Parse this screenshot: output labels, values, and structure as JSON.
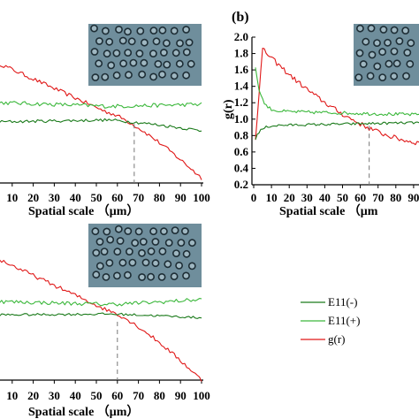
{
  "colors": {
    "e11_minus": "#1a7a1a",
    "e11_plus": "#3cb83c",
    "gr": "#e01818",
    "marker": "#777777",
    "inset_bg": "#6f8e9c",
    "inset_cell": "#1d2d35"
  },
  "panel_label_b": "(b)",
  "legend": [
    {
      "label": "E11(-)",
      "color": "#1a7a1a"
    },
    {
      "label": "E11(+)",
      "color": "#3cb83c"
    },
    {
      "label": "g(r)",
      "color": "#e01818"
    }
  ],
  "chart_data": [
    {
      "id": "a",
      "type": "line",
      "xlabel": "Spatial scale （μm）",
      "xlim": [
        0,
        100
      ],
      "x_ticks": [
        "10",
        "20",
        "30",
        "40",
        "50",
        "60",
        "70",
        "80",
        "90",
        "100"
      ],
      "ylim": [
        0.5,
        2.0
      ],
      "crossing_x": 68,
      "series": [
        {
          "name": "g(r)",
          "start": 1.75,
          "mid": 1.22,
          "end": 0.55,
          "noise": 0.02
        },
        {
          "name": "E11(+)",
          "start": 1.32,
          "mid": 1.28,
          "end": 1.3,
          "noise": 0.02
        },
        {
          "name": "E11(-)",
          "start": 1.12,
          "mid": 1.14,
          "end": 1.03,
          "noise": 0.015
        }
      ]
    },
    {
      "id": "b",
      "type": "line",
      "xlabel": "Spatial scale （μm",
      "ylabel": "g(r)",
      "xlim": [
        0,
        100
      ],
      "x_ticks": [
        "0",
        "10",
        "20",
        "30",
        "40",
        "50",
        "60",
        "70",
        "80",
        "90"
      ],
      "ylim": [
        0.2,
        2.0
      ],
      "y_ticks": [
        "2.0",
        "1.8",
        "1.6",
        "1.4",
        "1.2",
        "1.0",
        "0.8",
        "0.6",
        "0.4",
        "0.2"
      ],
      "crossing_x": 65,
      "series": [
        {
          "name": "g(r)",
          "start": 0.5,
          "peak": 1.85,
          "peak_x": 5,
          "end": 0.7,
          "noise": 0.03
        },
        {
          "name": "E11(+)",
          "start": 1.85,
          "mid": 1.1,
          "end": 1.05,
          "noise": 0.02
        },
        {
          "name": "E11(-)",
          "start": 0.7,
          "mid": 0.92,
          "end": 0.96,
          "noise": 0.015
        }
      ]
    },
    {
      "id": "c",
      "type": "line",
      "xlabel": "Spatial scale （μm）",
      "xlim": [
        0,
        100
      ],
      "x_ticks": [
        "10",
        "20",
        "30",
        "40",
        "50",
        "60",
        "70",
        "80",
        "90",
        "100"
      ],
      "ylim": [
        0.5,
        2.0
      ],
      "crossing_x": 60,
      "series": [
        {
          "name": "g(r)",
          "start": 1.78,
          "mid": 1.22,
          "end": 0.5,
          "noise": 0.02
        },
        {
          "name": "E11(+)",
          "start": 1.31,
          "mid": 1.28,
          "end": 1.33,
          "noise": 0.02
        },
        {
          "name": "E11(-)",
          "start": 1.17,
          "mid": 1.18,
          "end": 1.14,
          "noise": 0.012
        }
      ]
    }
  ]
}
